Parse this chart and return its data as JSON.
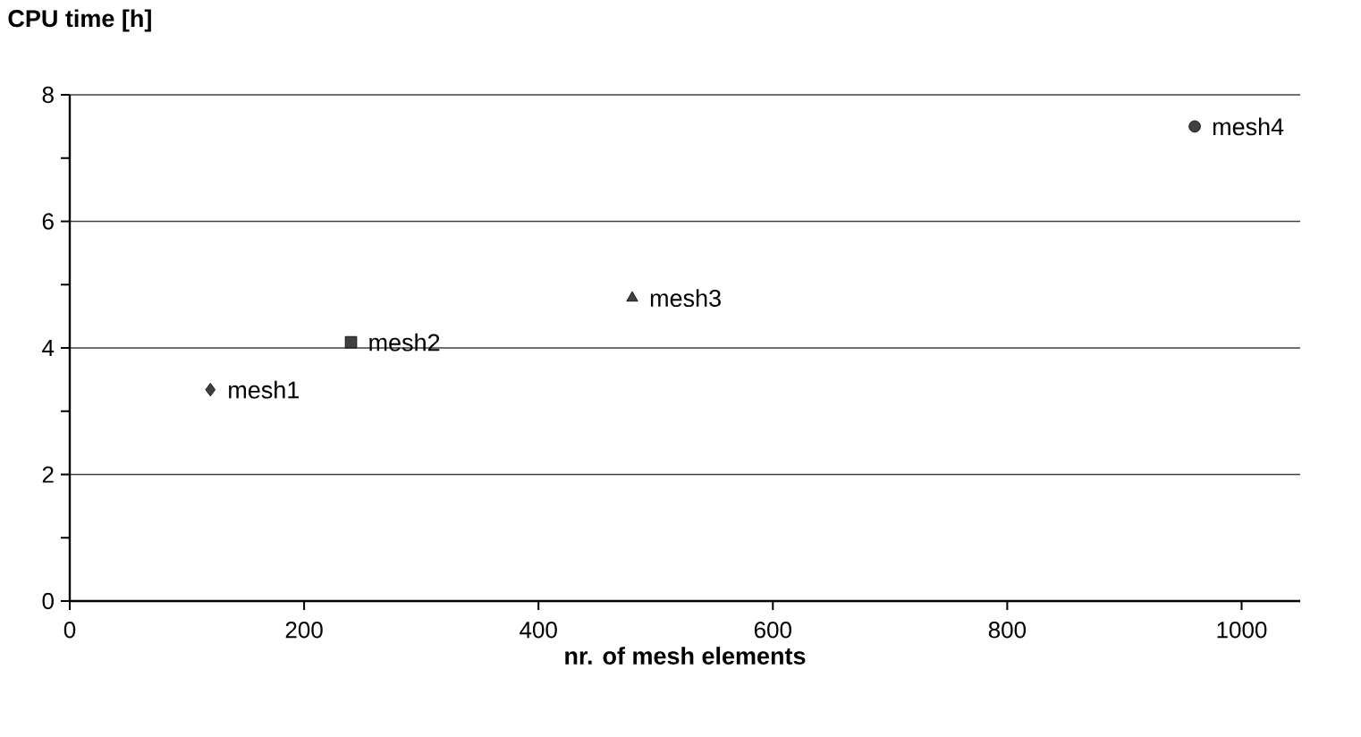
{
  "chart_data": {
    "type": "scatter",
    "title": "CPU time [h]",
    "xlabel": "nr. of mesh elements",
    "xlim": [
      0,
      1050
    ],
    "ylim": [
      0,
      8
    ],
    "xticks": [
      0,
      200,
      400,
      600,
      800,
      1000
    ],
    "yticks": [
      0,
      {
        "value": 1,
        "label": null
      },
      2,
      {
        "value": 3,
        "label": null
      },
      4,
      {
        "value": 5,
        "label": null
      },
      6,
      {
        "value": 7,
        "label": null
      },
      8
    ],
    "grid": "y",
    "series": [
      {
        "name": "mesh1",
        "color": "#404040",
        "marker": "diamond",
        "x": [
          120
        ],
        "values": [
          3.34
        ]
      },
      {
        "name": "mesh2",
        "color": "#404040",
        "marker": "square",
        "x": [
          240
        ],
        "values": [
          4.09
        ]
      },
      {
        "name": "mesh3",
        "color": "#404040",
        "marker": "triangle",
        "x": [
          480
        ],
        "values": [
          4.79
        ]
      },
      {
        "name": "mesh4",
        "color": "#404040",
        "marker": "circle",
        "x": [
          960
        ],
        "values": [
          7.5
        ]
      }
    ]
  }
}
